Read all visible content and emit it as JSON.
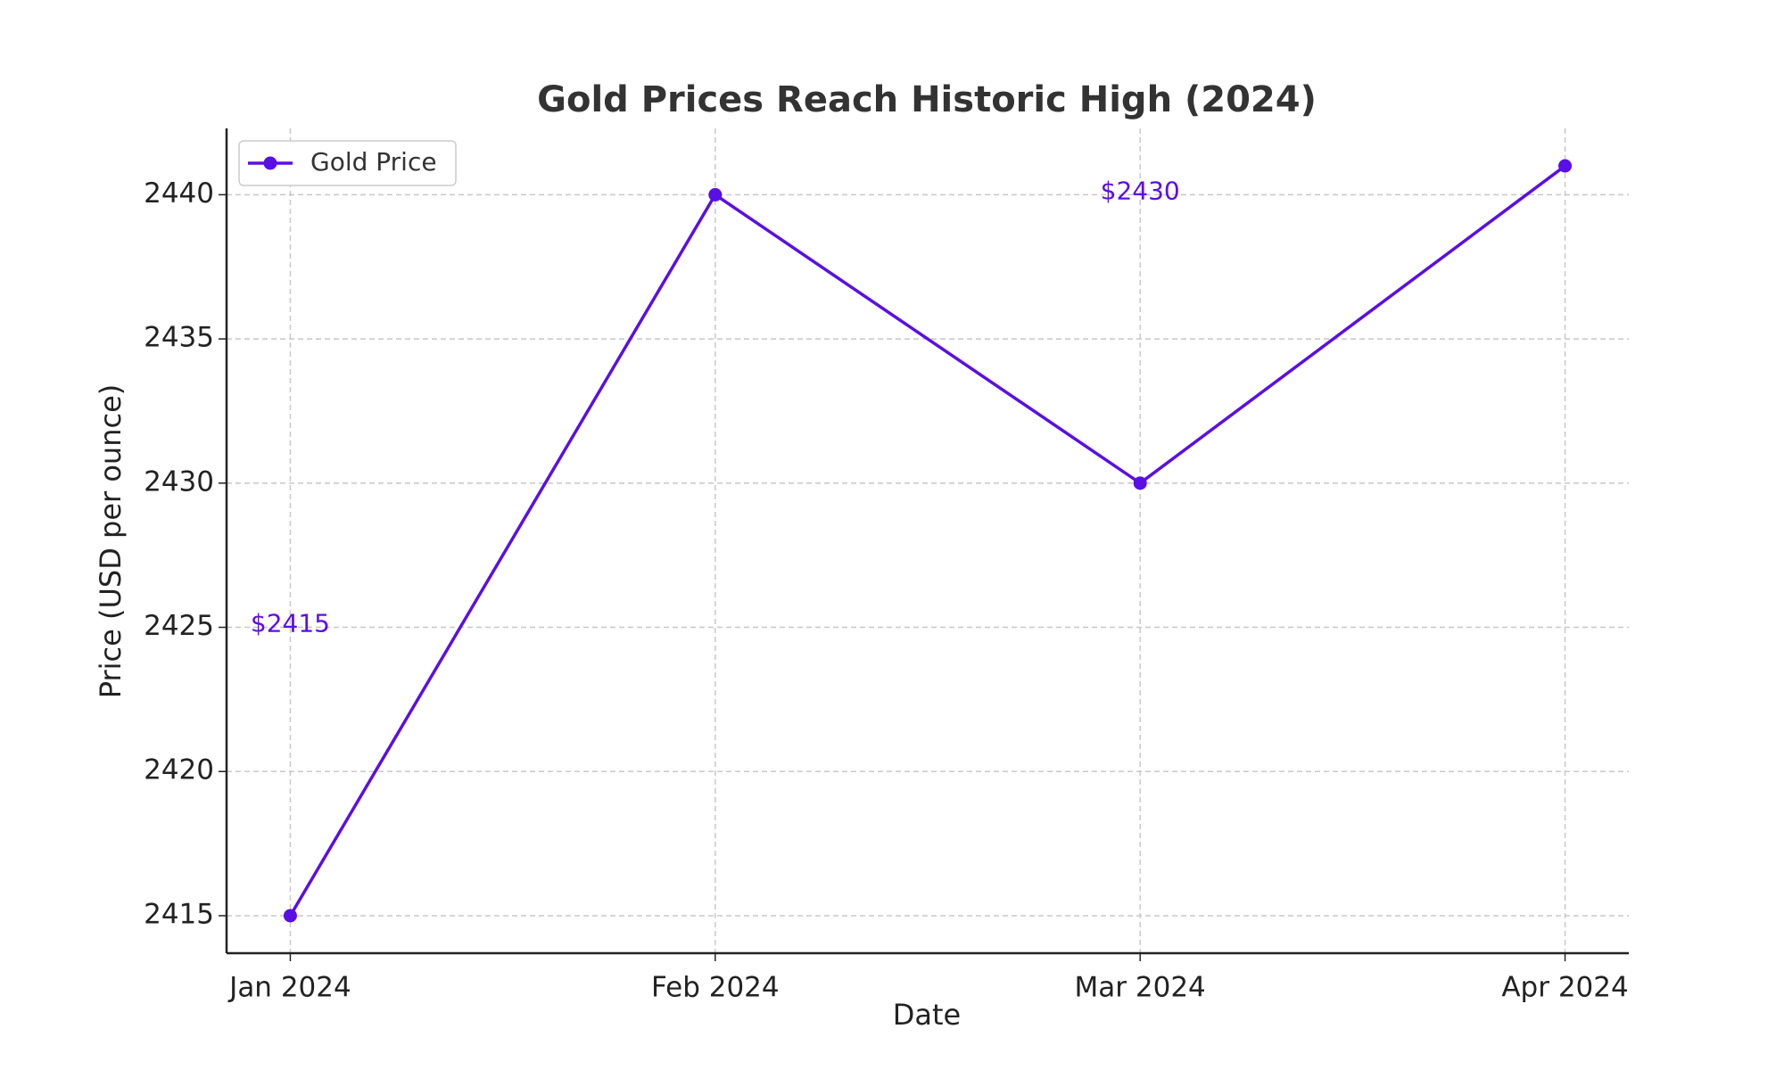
{
  "chart_data": {
    "type": "line",
    "title": "Gold Prices Reach Historic High (2024)",
    "x_label": "Date",
    "y_label": "Price (USD per ounce)",
    "categories": [
      "Jan 2024",
      "Feb 2024",
      "Mar 2024",
      "Apr 2024"
    ],
    "series": [
      {
        "name": "Gold Price",
        "color": "#5a0fe4",
        "values": [
          2415,
          2440,
          2430,
          2441
        ],
        "value_labels": [
          "$2415",
          null,
          "$2430",
          null
        ]
      }
    ],
    "ylim": [
      2413.7,
      2442.3
    ],
    "yticks": [
      2415,
      2420,
      2425,
      2430,
      2435,
      2440
    ],
    "grid": true,
    "legend": "upper left"
  }
}
